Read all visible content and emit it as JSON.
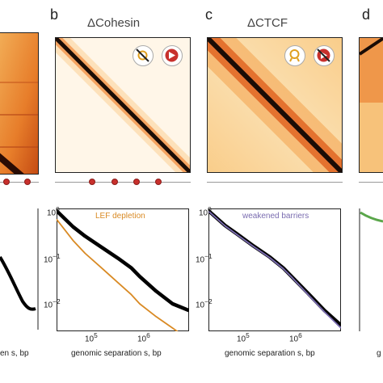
{
  "panels": {
    "b": {
      "letter": "b",
      "title": "ΔCohesin",
      "legend": "LEF depletion"
    },
    "c": {
      "letter": "c",
      "title": "ΔCTCF",
      "legend": "weakened barriers"
    },
    "d": {
      "letter": "d"
    }
  },
  "icons": {
    "b_left": "crossed-out-cohesin-icon",
    "b_right": "ctcf-arrow-icon",
    "c_left": "cohesin-ring-icon",
    "c_right": "crossed-out-ctcf-icon"
  },
  "colors": {
    "black_curve": "#000000",
    "orange_curve": "#d98a24",
    "purple_curve": "#7a6cb0",
    "green_curve": "#5aa64a",
    "ctcf_site": "#c8302c",
    "heatmap_dark": "#1a0c06",
    "heatmap_light": "#fff7ea"
  },
  "axes": {
    "xlabel": "genomic separation s, bp",
    "x_ticks_b": [
      "10^5",
      "10^6"
    ],
    "x_ticks_c": [
      "10^5",
      "10^6"
    ],
    "y_ticks": [
      "10^0",
      "10^-1",
      "10^-2"
    ],
    "left_fragment": "en s, bp",
    "right_fragment": "g"
  },
  "chart_data": [
    {
      "type": "line",
      "panel": "b",
      "xlabel": "genomic separation s, bp",
      "ylabel": "",
      "x_scale": "log",
      "y_scale": "log",
      "xlim": [
        30000,
        8000000
      ],
      "ylim": [
        0.003,
        1.0
      ],
      "series": [
        {
          "name": "",
          "color": "#000000",
          "x": [
            30000,
            60000,
            100000,
            200000,
            400000,
            700000,
            1000000,
            2000000,
            4000000,
            8000000
          ],
          "y": [
            0.9,
            0.42,
            0.27,
            0.16,
            0.095,
            0.06,
            0.04,
            0.02,
            0.011,
            0.008
          ]
        },
        {
          "name": "LEF depletion",
          "color": "#d98a24",
          "x": [
            30000,
            60000,
            100000,
            200000,
            400000,
            700000,
            1000000,
            2000000,
            4000000,
            8000000
          ],
          "y": [
            0.6,
            0.22,
            0.12,
            0.06,
            0.03,
            0.017,
            0.011,
            0.006,
            0.0035,
            0.002
          ]
        }
      ]
    },
    {
      "type": "line",
      "panel": "c",
      "xlabel": "genomic separation s, bp",
      "ylabel": "",
      "x_scale": "log",
      "y_scale": "log",
      "xlim": [
        30000,
        8000000
      ],
      "ylim": [
        0.003,
        1.0
      ],
      "series": [
        {
          "name": "",
          "color": "#000000",
          "x": [
            30000,
            60000,
            100000,
            200000,
            400000,
            700000,
            1000000,
            2000000,
            4000000,
            8000000
          ],
          "y": [
            0.9,
            0.45,
            0.3,
            0.17,
            0.1,
            0.06,
            0.04,
            0.018,
            0.008,
            0.004
          ]
        },
        {
          "name": "weakened barriers",
          "color": "#7a6cb0",
          "x": [
            30000,
            60000,
            100000,
            200000,
            400000,
            700000,
            1000000,
            2000000,
            4000000,
            8000000
          ],
          "y": [
            0.88,
            0.44,
            0.29,
            0.165,
            0.097,
            0.058,
            0.039,
            0.017,
            0.0075,
            0.0035
          ]
        }
      ]
    }
  ]
}
